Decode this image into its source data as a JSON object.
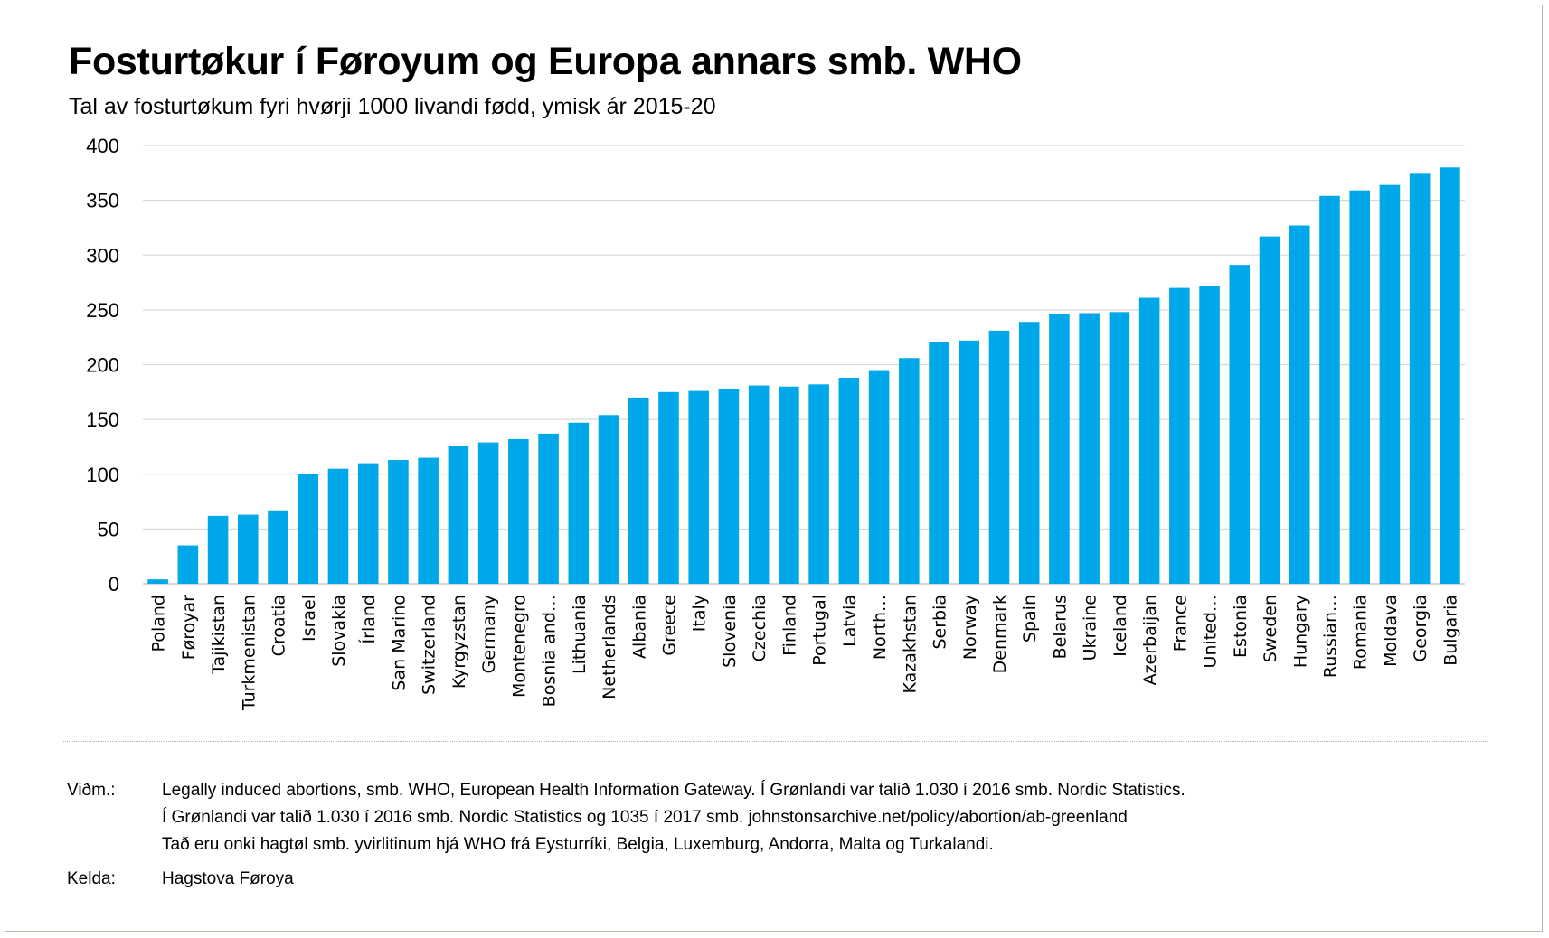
{
  "title": "Fosturtøkur í Føroyum og Europa annars smb. WHO",
  "subtitle": "Tal av fosturtøkum fyri hvørji 1000 livandi fødd, ymisk ár 2015-20",
  "colors": {
    "bar": "#00a8ea",
    "grid": "#d9d9d9",
    "axis": "#bfbfbf"
  },
  "chart_data": {
    "type": "bar",
    "title": "Fosturtøkur í Føroyum og Europa annars smb. WHO",
    "subtitle": "Tal av fosturtøkum fyri hvørji 1000 livandi fødd, ymisk ár 2015-20",
    "xlabel": "",
    "ylabel": "",
    "ylim": [
      0,
      400
    ],
    "yticks": [
      0,
      50,
      100,
      150,
      200,
      250,
      300,
      350,
      400
    ],
    "grid": true,
    "legend": "none",
    "categories": [
      "Poland",
      "Føroyar",
      "Tajikistan",
      "Turkmenistan",
      "Croatia",
      "Israel",
      "Slovakia",
      "Írland",
      "San Marino",
      "Switzerland",
      "Kyrgyzstan",
      "Germany",
      "Montenegro",
      "Bosnia and…",
      "Lithuania",
      "Netherlands",
      "Albania",
      "Greece",
      "Italy",
      "Slovenia",
      "Czechia",
      "Finland",
      "Portugal",
      "Latvia",
      "North…",
      "Kazakhstan",
      "Serbia",
      "Norway",
      "Denmark",
      "Spain",
      "Belarus",
      "Ukraine",
      "Iceland",
      "Azerbaijan",
      "France",
      "United…",
      "Estonia",
      "Sweden",
      "Hungary",
      "Russian…",
      "Romania",
      "Moldava",
      "Georgia",
      "Bulgaria"
    ],
    "values": [
      4,
      35,
      62,
      63,
      67,
      100,
      105,
      110,
      113,
      115,
      126,
      129,
      132,
      137,
      147,
      154,
      170,
      175,
      176,
      178,
      181,
      180,
      182,
      188,
      195,
      206,
      221,
      222,
      231,
      239,
      246,
      247,
      248,
      261,
      270,
      272,
      291,
      317,
      327,
      354,
      359,
      364,
      375,
      380
    ]
  },
  "notes": {
    "label": "Viðm.:",
    "lines": [
      "Legally induced abortions, smb. WHO, European Health Information Gateway. Í Grønlandi var talið 1.030 í 2016 smb. Nordic Statistics.",
      "Í Grønlandi var talið 1.030 í 2016 smb. Nordic Statistics og 1035 í 2017 smb. johnstonsarchive.net/policy/abortion/ab-greenland",
      "Tað eru onki hagtøl smb. yvirlitinum hjá WHO frá Eysturríki, Belgia, Luxemburg, Andorra, Malta og Turkalandi."
    ]
  },
  "source": {
    "label": "Kelda:",
    "text": "Hagstova Føroya"
  }
}
